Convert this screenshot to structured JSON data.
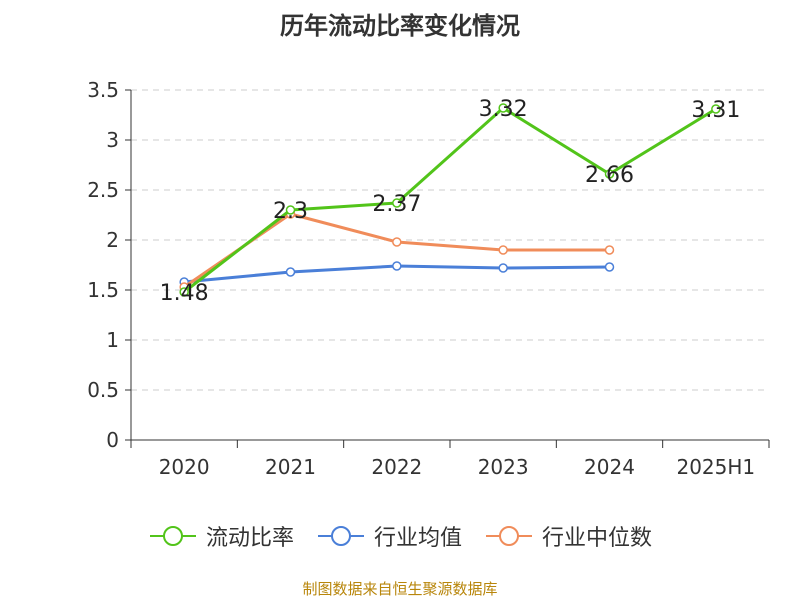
{
  "chart_data": {
    "type": "line",
    "title": "历年流动比率变化情况",
    "categories": [
      "2020",
      "2021",
      "2022",
      "2023",
      "2024",
      "2025H1"
    ],
    "ylim": [
      0,
      3.5
    ],
    "yticks": [
      "0",
      "0.5",
      "1",
      "1.5",
      "2",
      "2.5",
      "3",
      "3.5"
    ],
    "grid": true,
    "legend_position": "bottom",
    "series": [
      {
        "name": "流动比率",
        "color": "#52c41a",
        "values": [
          1.48,
          2.3,
          2.37,
          3.32,
          2.66,
          3.31
        ],
        "labels": [
          "1.48",
          "2.3",
          "2.37",
          "3.32",
          "2.66",
          "3.31"
        ]
      },
      {
        "name": "行业均值",
        "color": "#4a7fd8",
        "values": [
          1.58,
          1.68,
          1.74,
          1.72,
          1.73,
          null
        ]
      },
      {
        "name": "行业中位数",
        "color": "#f08c5a",
        "values": [
          1.53,
          2.26,
          1.98,
          1.9,
          1.9,
          null
        ]
      }
    ]
  },
  "source": "制图数据来自恒生聚源数据库"
}
